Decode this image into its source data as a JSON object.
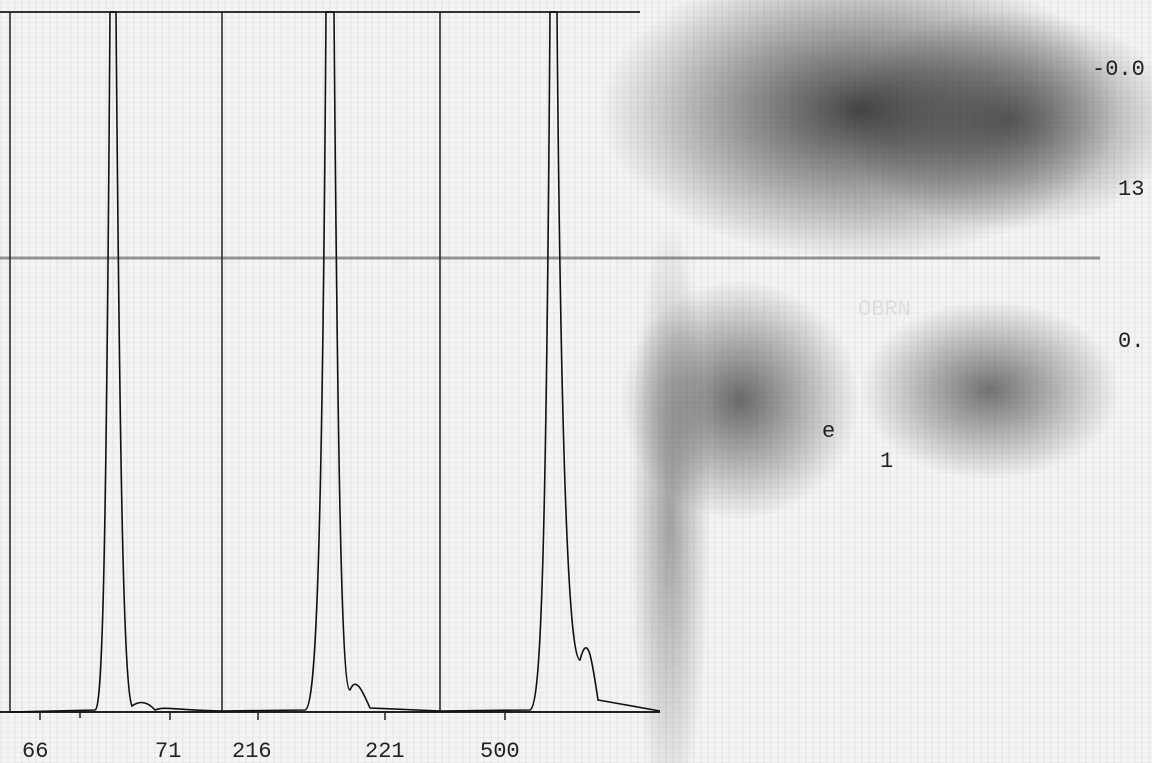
{
  "axis_labels": [
    "66",
    "71",
    "216",
    "221",
    "500"
  ],
  "right_labels": [
    "-0.0",
    "13",
    "0."
  ],
  "overlay_texts": [
    "OBRN",
    "e",
    "1"
  ]
}
